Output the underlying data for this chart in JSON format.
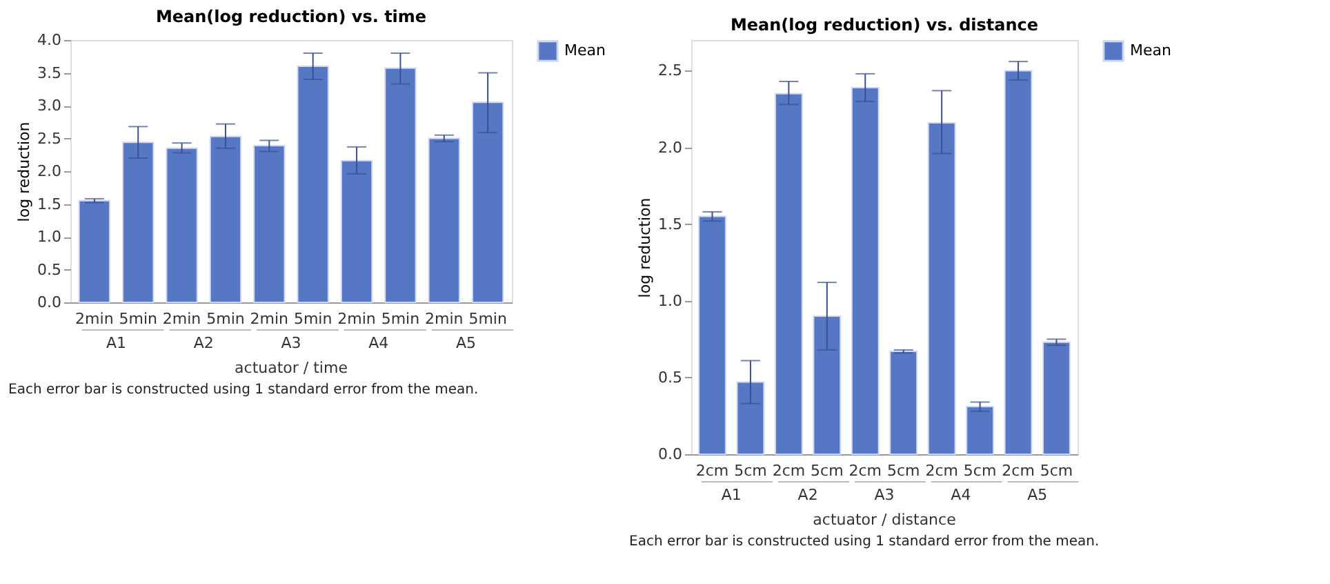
{
  "chart_data": [
    {
      "type": "bar",
      "title": "Mean(log reduction) vs. time",
      "xlabel": "actuator / time",
      "ylabel": "log reduction",
      "categories": [
        "2min",
        "5min",
        "2min",
        "5min",
        "2min",
        "5min",
        "2min",
        "5min",
        "2min",
        "5min"
      ],
      "series": [
        {
          "name": "Mean",
          "color": "#5677c4",
          "values": [
            1.55,
            2.44,
            2.35,
            2.53,
            2.39,
            3.6,
            2.16,
            3.57,
            2.5,
            3.05
          ],
          "errors": [
            [
              1.52,
              1.58
            ],
            [
              2.2,
              2.68
            ],
            [
              2.28,
              2.43
            ],
            [
              2.35,
              2.72
            ],
            [
              2.3,
              2.47
            ],
            [
              3.4,
              3.8
            ],
            [
              1.96,
              2.37
            ],
            [
              3.33,
              3.8
            ],
            [
              2.45,
              2.55
            ],
            [
              2.59,
              3.5
            ]
          ]
        }
      ],
      "ylim": [
        0,
        4
      ],
      "yticks": [
        {
          "value": 0,
          "label": "0.0"
        },
        0.5,
        {
          "value": 1,
          "label": "1.0"
        },
        1.5,
        {
          "value": 2,
          "label": "2.0"
        },
        2.5,
        {
          "value": 3,
          "label": "3.0"
        },
        3.5,
        {
          "value": 4,
          "label": "4.0"
        }
      ],
      "grid": false,
      "legend": "top right",
      "annotations": [
        "A1",
        "A2",
        "A3",
        "A4",
        "A5",
        "Each error bar is constructed using 1 standard error from the mean."
      ]
    },
    {
      "type": "bar",
      "title": "Mean(log reduction) vs. distance",
      "xlabel": "actuator / distance",
      "ylabel": "log reduction",
      "categories": [
        "2cm",
        "5cm",
        "2cm",
        "5cm",
        "2cm",
        "5cm",
        "2cm",
        "5cm",
        "2cm",
        "5cm"
      ],
      "series": [
        {
          "name": "Mean",
          "color": "#5677c4",
          "values": [
            1.55,
            0.47,
            2.35,
            0.9,
            2.39,
            0.67,
            2.16,
            0.31,
            2.5,
            0.73
          ],
          "errors": [
            [
              1.52,
              1.58
            ],
            [
              0.33,
              0.61
            ],
            [
              2.28,
              2.43
            ],
            [
              0.68,
              1.12
            ],
            [
              2.3,
              2.48
            ],
            [
              0.66,
              0.68
            ],
            [
              1.96,
              2.37
            ],
            [
              0.28,
              0.34
            ],
            [
              2.44,
              2.56
            ],
            [
              0.71,
              0.75
            ]
          ]
        }
      ],
      "ylim": [
        0,
        2.7
      ],
      "yticks": [
        {
          "value": 0,
          "label": "0.0"
        },
        0.5,
        {
          "value": 1,
          "label": "1.0"
        },
        1.5,
        {
          "value": 2,
          "label": "2.0"
        },
        2.5
      ],
      "grid": false,
      "legend": "top right",
      "annotations": [
        "A1",
        "A2",
        "A3",
        "A4",
        "A5",
        "Each error bar is constructed using 1 standard error from the mean."
      ]
    }
  ]
}
